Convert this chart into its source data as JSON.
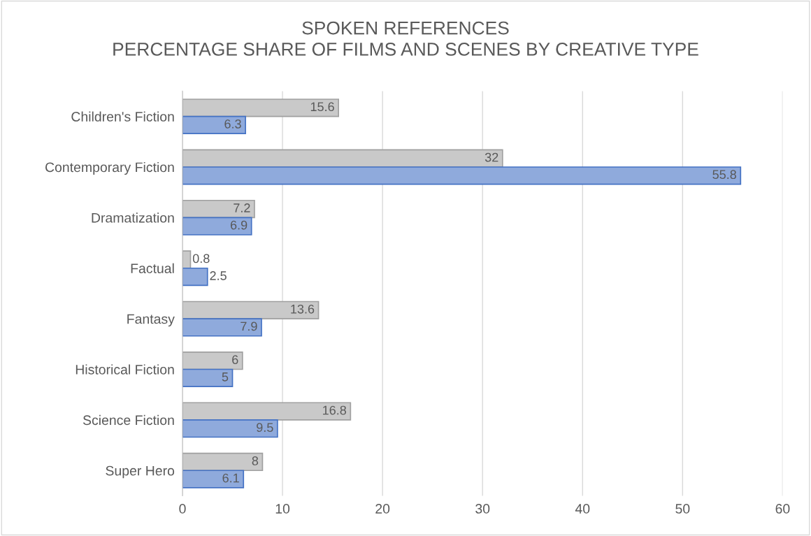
{
  "chart_data": {
    "type": "bar",
    "orientation": "horizontal",
    "title": "SPOKEN REFERENCES\nPERCENTAGE SHARE OF FILMS AND SCENES BY CREATIVE TYPE",
    "categories": [
      "Children's Fiction",
      "Contemporary Fiction",
      "Dramatization",
      "Factual",
      "Fantasy",
      "Historical Fiction",
      "Science Fiction",
      "Super Hero"
    ],
    "series": [
      {
        "color": "#c9c9c9",
        "values": [
          15.6,
          32,
          7.2,
          0.8,
          13.6,
          6,
          16.8,
          8
        ]
      },
      {
        "color": "#8faadc",
        "values": [
          6.3,
          55.8,
          6.9,
          2.5,
          7.9,
          5,
          9.5,
          6.1
        ]
      }
    ],
    "xlim": [
      0,
      60
    ],
    "xticks": [
      0,
      10,
      20,
      30,
      40,
      50,
      60
    ],
    "grid": "x",
    "data_labels": true,
    "legend": false
  }
}
